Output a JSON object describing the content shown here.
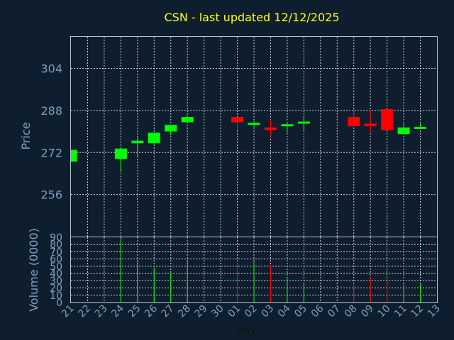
{
  "chart_data": {
    "type": "candlestick",
    "title": "CSN - last updated 12/12/2025",
    "ylabel_price": "Price",
    "ylabel_volume": "Volume (0000)",
    "xlabel": "Day",
    "price_ylim": [
      240,
      316
    ],
    "price_yticks": [
      256,
      272,
      288,
      304
    ],
    "volume_ylim": [
      0,
      90
    ],
    "volume_yticks": [
      0,
      10,
      20,
      30,
      40,
      50,
      60,
      70,
      80,
      90
    ],
    "x_ticks": [
      "21",
      "22",
      "23",
      "24",
      "25",
      "26",
      "27",
      "28",
      "29",
      "30",
      "01",
      "02",
      "03",
      "04",
      "05",
      "06",
      "07",
      "08",
      "09",
      "10",
      "11",
      "12",
      "13"
    ],
    "up_color": "#00ff00",
    "down_color": "#ff0000",
    "candles": [
      {
        "x": "21",
        "open": 268.5,
        "close": 273,
        "high": 273,
        "low": 268.5,
        "volume": 0
      },
      {
        "x": "24",
        "open": 269.5,
        "close": 273.5,
        "high": 273.5,
        "low": 264.5,
        "volume": 88
      },
      {
        "x": "25",
        "open": 275.5,
        "close": 276.5,
        "high": 277.5,
        "low": 270.5,
        "volume": 58
      },
      {
        "x": "26",
        "open": 275.5,
        "close": 279.5,
        "high": 279.5,
        "low": 275,
        "volume": 48
      },
      {
        "x": "27",
        "open": 280,
        "close": 282.5,
        "high": 282.5,
        "low": 278.5,
        "volume": 40
      },
      {
        "x": "28",
        "open": 283.5,
        "close": 285.5,
        "high": 286,
        "low": 283.5,
        "volume": 58
      },
      {
        "x": "01",
        "open": 285.5,
        "close": 283.5,
        "high": 285.5,
        "low": 280.5,
        "volume": 58
      },
      {
        "x": "02",
        "open": 282.5,
        "close": 283,
        "high": 284,
        "low": 281,
        "volume": 57
      },
      {
        "x": "03",
        "open": 281.5,
        "close": 280.5,
        "high": 284.5,
        "low": 278,
        "volume": 52
      },
      {
        "x": "04",
        "open": 282,
        "close": 282.5,
        "high": 283.5,
        "low": 279.5,
        "volume": 33
      },
      {
        "x": "05",
        "open": 283.5,
        "close": 283.5,
        "high": 286,
        "low": 280,
        "volume": 27
      },
      {
        "x": "08",
        "open": 285.5,
        "close": 282,
        "high": 288.5,
        "low": 282,
        "volume": 23
      },
      {
        "x": "09",
        "open": 283,
        "close": 282,
        "high": 288,
        "low": 279.5,
        "volume": 35
      },
      {
        "x": "10",
        "open": 288.5,
        "close": 280.5,
        "high": 288.5,
        "low": 280.5,
        "volume": 30
      },
      {
        "x": "11",
        "open": 279,
        "close": 281.5,
        "high": 283,
        "low": 279,
        "volume": 25
      },
      {
        "x": "12",
        "open": 281.5,
        "close": 281.5,
        "high": 283,
        "low": 281,
        "volume": 25
      }
    ]
  }
}
